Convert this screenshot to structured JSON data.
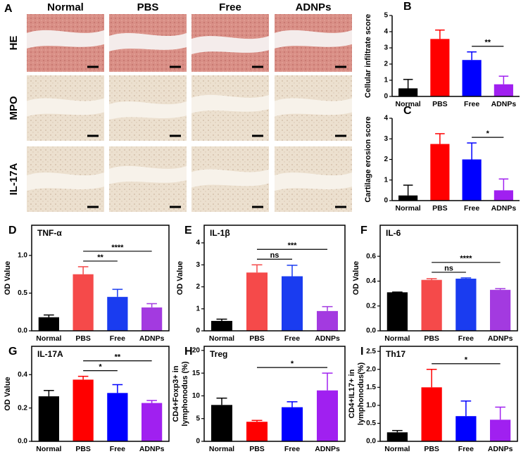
{
  "histology": {
    "panel_label": "A",
    "columns": [
      "Normal",
      "PBS",
      "Free",
      "ADNPs"
    ],
    "rows": [
      "HE",
      "MPO",
      "IL-17A"
    ]
  },
  "chart_data": [
    {
      "type": "bar",
      "panel_label": "B",
      "ylabel": "Cellular infiltrate score",
      "categories": [
        "Normal",
        "PBS",
        "Free",
        "ADNPs"
      ],
      "values": [
        0.5,
        3.55,
        2.25,
        0.75
      ],
      "errors": [
        0.55,
        0.55,
        0.5,
        0.5
      ],
      "colors": [
        "#000000",
        "#ff0000",
        "#0000ff",
        "#a020f0"
      ],
      "ylim": [
        0,
        5
      ],
      "yticks": [
        0,
        1,
        2,
        3,
        4,
        5
      ],
      "annotations": [
        {
          "text": "**",
          "between": [
            "Free",
            "ADNPs"
          ]
        }
      ]
    },
    {
      "type": "bar",
      "panel_label": "C",
      "ylabel": "Cartilage erosion score",
      "categories": [
        "Normal",
        "PBS",
        "Free",
        "ADNPs"
      ],
      "values": [
        0.25,
        2.75,
        2.0,
        0.5
      ],
      "errors": [
        0.5,
        0.5,
        0.8,
        0.55
      ],
      "colors": [
        "#000000",
        "#ff0000",
        "#0000ff",
        "#a020f0"
      ],
      "ylim": [
        0,
        4
      ],
      "yticks": [
        0,
        1,
        2,
        3,
        4
      ],
      "annotations": [
        {
          "text": "*",
          "between": [
            "Free",
            "ADNPs"
          ]
        }
      ]
    },
    {
      "type": "bar",
      "panel_label": "D",
      "title": "TNF-α",
      "ylabel": "OD Value",
      "categories": [
        "Normal",
        "PBS",
        "Free",
        "ADNPs"
      ],
      "values": [
        0.18,
        0.75,
        0.45,
        0.31
      ],
      "errors": [
        0.03,
        0.1,
        0.1,
        0.05
      ],
      "colors": [
        "#000000",
        "#f54a4a",
        "#1a3cf0",
        "#a33ae0"
      ],
      "ylim": [
        0,
        1.4
      ],
      "yticks": [
        {
          "value": 0,
          "label": "0.0"
        },
        0.5,
        {
          "value": 1,
          "label": "1.0"
        }
      ],
      "annotations": [
        {
          "text": "**",
          "between": [
            "PBS",
            "Free"
          ]
        },
        {
          "text": "****",
          "between": [
            "PBS",
            "ADNPs"
          ]
        }
      ]
    },
    {
      "type": "bar",
      "panel_label": "E",
      "title": "IL-1β",
      "ylabel": "OD Value",
      "categories": [
        "Normal",
        "PBS",
        "Free",
        "ADNPs"
      ],
      "values": [
        0.45,
        2.65,
        2.48,
        0.9
      ],
      "errors": [
        0.08,
        0.35,
        0.5,
        0.2
      ],
      "colors": [
        "#000000",
        "#f54a4a",
        "#1a3cf0",
        "#a33ae0"
      ],
      "ylim": [
        0,
        4.8
      ],
      "yticks": [
        0,
        1,
        2,
        3,
        4
      ],
      "annotations": [
        {
          "text": "ns",
          "between": [
            "PBS",
            "Free"
          ]
        },
        {
          "text": "***",
          "between": [
            "PBS",
            "ADNPs"
          ]
        }
      ]
    },
    {
      "type": "bar",
      "panel_label": "F",
      "title": "IL-6",
      "ylabel": "OD Value",
      "categories": [
        "Normal",
        "PBS",
        "Free",
        "ADNPs"
      ],
      "values": [
        0.31,
        0.41,
        0.42,
        0.33
      ],
      "errors": [
        0.002,
        0.01,
        0.006,
        0.01
      ],
      "colors": [
        "#000000",
        "#f54a4a",
        "#1a3cf0",
        "#a33ae0"
      ],
      "ylim": [
        0,
        0.85
      ],
      "yticks": [
        {
          "value": 0,
          "label": "0.0"
        },
        0.2,
        0.4,
        0.6
      ],
      "annotations": [
        {
          "text": "ns",
          "between": [
            "PBS",
            "Free"
          ]
        },
        {
          "text": "****",
          "between": [
            "PBS",
            "ADNPs"
          ]
        }
      ]
    },
    {
      "type": "bar",
      "panel_label": "G",
      "title": "IL-17A",
      "ylabel": "OD Value",
      "categories": [
        "Normal",
        "PBS",
        "Free",
        "ADNPs"
      ],
      "values": [
        0.27,
        0.37,
        0.29,
        0.23
      ],
      "errors": [
        0.035,
        0.02,
        0.05,
        0.015
      ],
      "colors": [
        "#000000",
        "#ff0000",
        "#0000ff",
        "#a020f0"
      ],
      "ylim": [
        0,
        0.57
      ],
      "yticks": [
        {
          "value": 0,
          "label": "0.0"
        },
        0.2,
        0.4
      ],
      "annotations": [
        {
          "text": "*",
          "between": [
            "PBS",
            "Free"
          ]
        },
        {
          "text": "**",
          "between": [
            "PBS",
            "ADNPs"
          ]
        }
      ]
    },
    {
      "type": "bar",
      "panel_label": "H",
      "title": "Treg",
      "ylabel": [
        "CD4+Foxp3+ in",
        "lymphonodus (%)"
      ],
      "categories": [
        "Normal",
        "PBS",
        "Free",
        "ADNPs"
      ],
      "values": [
        8,
        4.3,
        7.5,
        11.2
      ],
      "errors": [
        1.5,
        0.3,
        1.2,
        3.8
      ],
      "colors": [
        "#000000",
        "#ff0000",
        "#0000ff",
        "#a020f0"
      ],
      "ylim": [
        0,
        20.9
      ],
      "yticks": [
        0,
        5,
        10,
        15,
        20
      ],
      "annotations": [
        {
          "text": "*",
          "between": [
            "PBS",
            "ADNPs"
          ]
        }
      ]
    },
    {
      "type": "bar",
      "panel_label": "I",
      "title": "Th17",
      "ylabel": [
        "CD4+IL17+ in",
        "lymphonodus(%)"
      ],
      "categories": [
        "Normal",
        "PBS",
        "Free",
        "ADNPs"
      ],
      "values": [
        0.25,
        1.5,
        0.7,
        0.6
      ],
      "errors": [
        0.05,
        0.5,
        0.42,
        0.35
      ],
      "colors": [
        "#000000",
        "#ff0000",
        "#0000ff",
        "#a020f0"
      ],
      "ylim": [
        0,
        2.64
      ],
      "yticks": [
        {
          "value": 0,
          "label": "0.0"
        },
        0.5,
        {
          "value": 1,
          "label": "1.0"
        },
        1.5,
        {
          "value": 2,
          "label": "2.0"
        },
        2.5
      ],
      "annotations": [
        {
          "text": "*",
          "between": [
            "PBS",
            "ADNPs"
          ]
        }
      ]
    }
  ]
}
